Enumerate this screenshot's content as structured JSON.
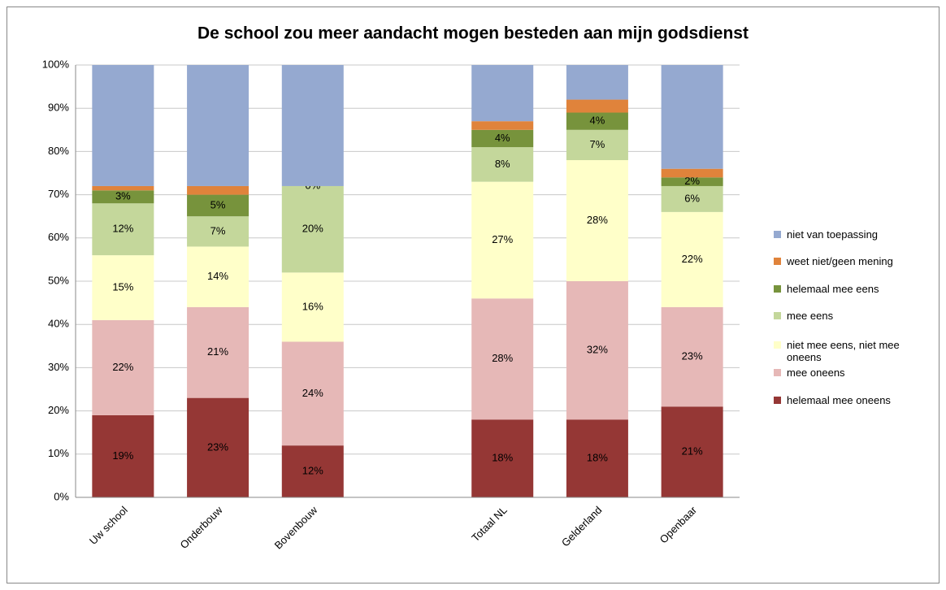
{
  "chart_data": {
    "type": "stacked_bar",
    "title": "De school zou meer aandacht mogen besteden aan mijn godsdienst",
    "categories": [
      "Uw school",
      "Onderbouw",
      "Bovenbouw",
      null,
      "Totaal NL",
      "Gelderland",
      "Openbaar"
    ],
    "ylim": [
      0,
      100
    ],
    "yticks": [
      {
        "value": 0,
        "label": "0%"
      },
      {
        "value": 10,
        "label": "10%"
      },
      {
        "value": 20,
        "label": "20%"
      },
      {
        "value": 30,
        "label": "30%"
      },
      {
        "value": 40,
        "label": "40%"
      },
      {
        "value": 50,
        "label": "50%"
      },
      {
        "value": 60,
        "label": "60%"
      },
      {
        "value": 70,
        "label": "70%"
      },
      {
        "value": 80,
        "label": "80%"
      },
      {
        "value": 90,
        "label": "90%"
      },
      {
        "value": 100,
        "label": "100%"
      }
    ],
    "grid": true,
    "legend": "right",
    "series": [
      {
        "name": "helemaal mee oneens",
        "color": "#953735",
        "values": [
          19,
          23,
          12,
          null,
          18,
          18,
          21
        ],
        "value_labels": [
          "19%",
          "23%",
          "12%",
          null,
          "18%",
          "18%",
          "21%"
        ]
      },
      {
        "name": "mee oneens",
        "color": "#e6b8b7",
        "values": [
          22,
          21,
          24,
          null,
          28,
          32,
          23
        ],
        "value_labels": [
          "22%",
          "21%",
          "24%",
          null,
          "28%",
          "32%",
          "23%"
        ]
      },
      {
        "name": "niet mee eens, niet mee oneens",
        "color": "#ffffc9",
        "values": [
          15,
          14,
          16,
          null,
          27,
          28,
          22
        ],
        "value_labels": [
          "15%",
          "14%",
          "16%",
          null,
          "27%",
          "28%",
          "22%"
        ]
      },
      {
        "name": "mee eens",
        "color": "#c4d79b",
        "values": [
          12,
          7,
          20,
          null,
          8,
          7,
          6
        ],
        "value_labels": [
          "12%",
          "7%",
          "20%",
          null,
          "8%",
          "7%",
          "6%"
        ]
      },
      {
        "name": "helemaal mee eens",
        "color": "#77933c",
        "values": [
          3,
          5,
          0,
          null,
          4,
          4,
          2
        ],
        "value_labels": [
          "3%",
          "5%",
          "0%",
          null,
          "4%",
          "4%",
          "2%"
        ]
      },
      {
        "name": "weet niet/geen mening",
        "color": "#e0833b",
        "values": [
          1,
          2,
          0,
          null,
          2,
          3,
          2
        ]
      },
      {
        "name": "niet van toepassing",
        "color": "#95a9d0",
        "values": [
          28,
          28,
          28,
          null,
          13,
          8,
          24
        ]
      }
    ]
  }
}
